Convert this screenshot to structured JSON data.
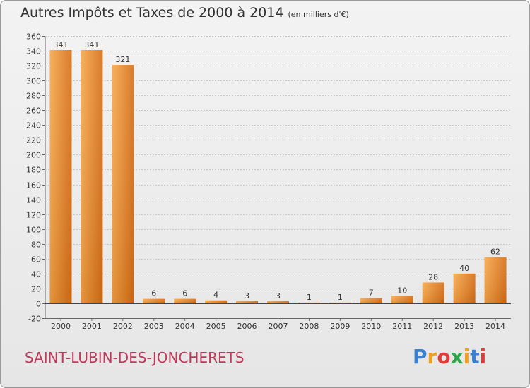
{
  "title": "Autres Impôts et Taxes de 2000 à 2014",
  "unit_note": "(en milliers d'€)",
  "commune": "SAINT-LUBIN-DES-JONCHERETS",
  "logo": {
    "text": "Proxiti",
    "colors": [
      "#3a7fd0",
      "#f0a020",
      "#e23b3b",
      "#2aa84a",
      "#f0a020",
      "#3a7fd0",
      "#e23b3b"
    ]
  },
  "colors": {
    "bar_light": "#f7a84a",
    "bar_dark": "#d46d16",
    "commune": "#c0395c"
  },
  "chart_data": {
    "type": "bar",
    "title": "Autres Impôts et Taxes de 2000 à 2014",
    "subtitle": "(en milliers d'€)",
    "categories": [
      "2000",
      "2001",
      "2002",
      "2003",
      "2004",
      "2005",
      "2006",
      "2007",
      "2008",
      "2009",
      "2010",
      "2011",
      "2012",
      "2013",
      "2014"
    ],
    "values": [
      341,
      341,
      321,
      6,
      6,
      4,
      3,
      3,
      1,
      1,
      7,
      10,
      28,
      40,
      62
    ],
    "ylim": [
      -20,
      360
    ],
    "yticks": [
      -20,
      0,
      20,
      40,
      60,
      80,
      100,
      120,
      140,
      160,
      180,
      200,
      220,
      240,
      260,
      280,
      300,
      320,
      340,
      360
    ],
    "grid": true,
    "data_labels": true,
    "xlabel": "",
    "ylabel": ""
  }
}
